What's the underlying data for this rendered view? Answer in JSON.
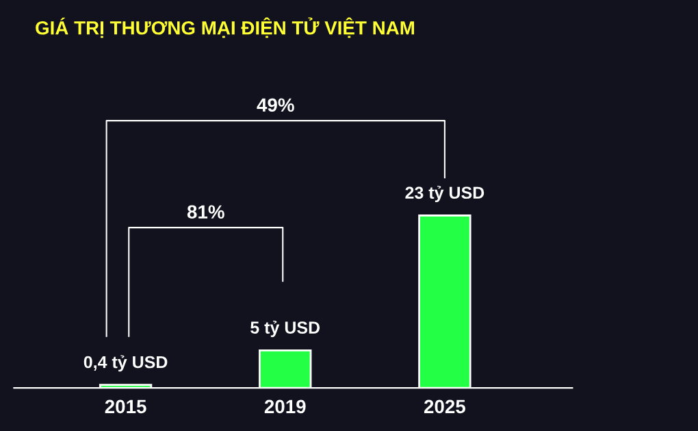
{
  "chart_data": {
    "type": "bar",
    "title": "GIÁ TRỊ THƯƠNG MẠI ĐIỆN TỬ VIỆT NAM",
    "categories": [
      "2015",
      "2019",
      "2025"
    ],
    "values": [
      0.4,
      5,
      23
    ],
    "value_labels": [
      "0,4 tỷ USD",
      "5 tỷ USD",
      "23 tỷ USD"
    ],
    "color": "#22ff44",
    "annotations": [
      "49%",
      "81%"
    ],
    "grid": false,
    "legend": false
  }
}
